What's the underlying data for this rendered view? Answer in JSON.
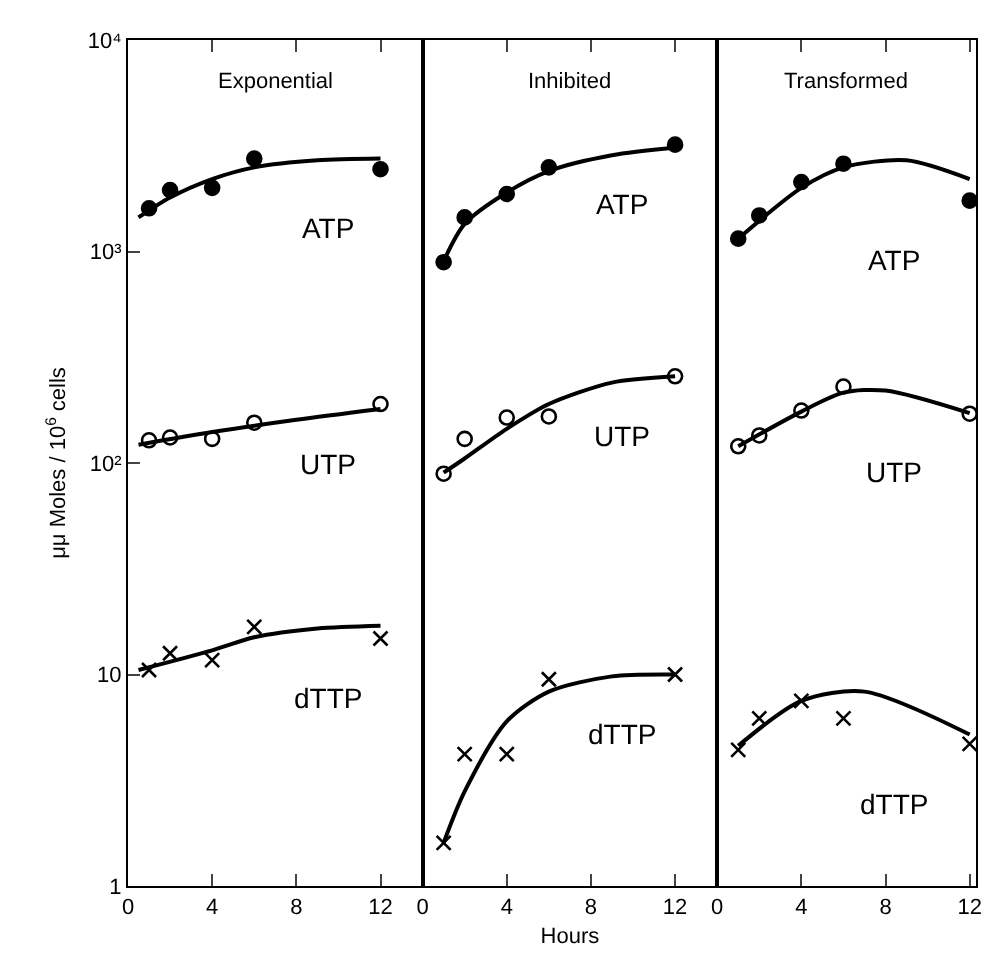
{
  "chart_data": [
    {
      "type": "scatter",
      "title": "Exponential",
      "ylabel": "μμ Moles / 10$^{6}$ cells",
      "log": "y",
      "legend": false,
      "xlim": [
        0,
        14
      ],
      "xticks": [
        0,
        4,
        8,
        12
      ],
      "ylim": [
        1,
        10000
      ],
      "yticks": [
        1,
        10,
        {
          "value": 100,
          "label": "10²"
        },
        {
          "value": 1000,
          "label": "10³"
        },
        {
          "value": 10000,
          "label": "10⁴"
        }
      ],
      "series": [
        {
          "name": "ATP",
          "color": "#000000",
          "marker": "circle",
          "x": [
            1,
            2,
            4,
            6,
            12
          ],
          "values": [
            1600,
            1950,
            2000,
            2750,
            2450
          ]
        },
        {
          "name": "UTP",
          "color": "#ffffff",
          "marker": "circle",
          "x": [
            1,
            2,
            4,
            6,
            12
          ],
          "values": [
            128,
            132,
            130,
            155,
            190
          ]
        },
        {
          "name": "dTTP",
          "color": "#000000",
          "marker": "cross",
          "x": [
            1,
            2,
            4,
            6,
            12
          ],
          "values": [
            10.5,
            12.6,
            11.7,
            16.8,
            14.8
          ]
        },
        {
          "type": "line",
          "color": "#000000",
          "marker": "none",
          "line_style": "solid",
          "x": [
            0.5,
            2,
            4,
            6,
            9,
            12
          ],
          "values": [
            1450,
            1800,
            2200,
            2500,
            2700,
            2750
          ]
        },
        {
          "type": "line",
          "color": "#000000",
          "marker": "none",
          "line_style": "solid",
          "x": [
            0.5,
            4,
            8,
            12
          ],
          "values": [
            122,
            140,
            160,
            180
          ]
        },
        {
          "type": "line",
          "color": "#000000",
          "marker": "none",
          "line_style": "solid",
          "x": [
            0.5,
            4,
            6,
            9,
            12
          ],
          "values": [
            10.5,
            13,
            15,
            16.5,
            17
          ]
        }
      ]
    },
    {
      "type": "scatter",
      "title": "Inhibited",
      "xlabel": "Hours",
      "log": "y",
      "legend": false,
      "tick_labels": "x",
      "xlim": [
        0,
        14
      ],
      "xticks": [
        0,
        4,
        8,
        12
      ],
      "ylim": [
        1,
        10000
      ],
      "series": [
        {
          "name": "ATP",
          "color": "#000000",
          "marker": "circle",
          "x": [
            1,
            2,
            4,
            6,
            12
          ],
          "values": [
            890,
            1450,
            1870,
            2500,
            3200
          ]
        },
        {
          "name": "UTP",
          "color": "#ffffff",
          "marker": "circle",
          "x": [
            1,
            2,
            4,
            6,
            12
          ],
          "values": [
            89,
            130,
            164,
            166,
            257
          ]
        },
        {
          "name": "dTTP",
          "color": "#000000",
          "marker": "cross",
          "x": [
            1,
            2,
            4,
            6,
            12
          ],
          "values": [
            1.6,
            4.2,
            4.2,
            9.5,
            10
          ]
        },
        {
          "type": "line",
          "color": "#000000",
          "marker": "none",
          "line_style": "solid",
          "x": [
            1,
            2,
            4,
            6,
            9,
            12
          ],
          "values": [
            900,
            1350,
            1900,
            2400,
            2850,
            3100
          ]
        },
        {
          "type": "line",
          "color": "#000000",
          "marker": "none",
          "line_style": "solid",
          "x": [
            1,
            2,
            4,
            6,
            9,
            12
          ],
          "values": [
            90,
            105,
            145,
            190,
            240,
            257
          ]
        },
        {
          "type": "line",
          "color": "#000000",
          "marker": "none",
          "line_style": "solid",
          "x": [
            1,
            2,
            4,
            6,
            9,
            12
          ],
          "values": [
            1.6,
            2.8,
            6,
            8.3,
            9.8,
            10
          ]
        }
      ]
    },
    {
      "type": "scatter",
      "title": "Transformed",
      "log": "y",
      "legend": false,
      "tick_labels": "x",
      "xlim": [
        0,
        12.3
      ],
      "xticks": [
        0,
        4,
        8,
        12
      ],
      "ylim": [
        1,
        10000
      ],
      "series": [
        {
          "name": "ATP",
          "color": "#000000",
          "marker": "circle",
          "x": [
            1,
            2,
            4,
            6,
            12
          ],
          "values": [
            1150,
            1480,
            2130,
            2600,
            1740
          ]
        },
        {
          "name": "UTP",
          "color": "#ffffff",
          "marker": "circle",
          "x": [
            1,
            2,
            4,
            6,
            12
          ],
          "values": [
            120,
            135,
            177,
            230,
            171
          ]
        },
        {
          "name": "dTTP",
          "color": "#000000",
          "marker": "cross",
          "x": [
            1,
            2,
            4,
            6,
            12
          ],
          "values": [
            4.4,
            6.2,
            7.5,
            6.2,
            4.7
          ]
        },
        {
          "type": "line",
          "color": "#000000",
          "marker": "none",
          "line_style": "solid",
          "x": [
            1,
            4,
            6,
            9,
            12
          ],
          "values": [
            1150,
            2000,
            2500,
            2700,
            2200
          ]
        },
        {
          "type": "line",
          "color": "#000000",
          "marker": "none",
          "line_style": "solid",
          "x": [
            1,
            4,
            6,
            8,
            12
          ],
          "values": [
            120,
            175,
            215,
            220,
            172
          ]
        },
        {
          "type": "line",
          "color": "#000000",
          "marker": "none",
          "line_style": "solid",
          "x": [
            1,
            4,
            7,
            12
          ],
          "values": [
            4.6,
            7.5,
            8.3,
            5.2
          ]
        }
      ]
    }
  ]
}
